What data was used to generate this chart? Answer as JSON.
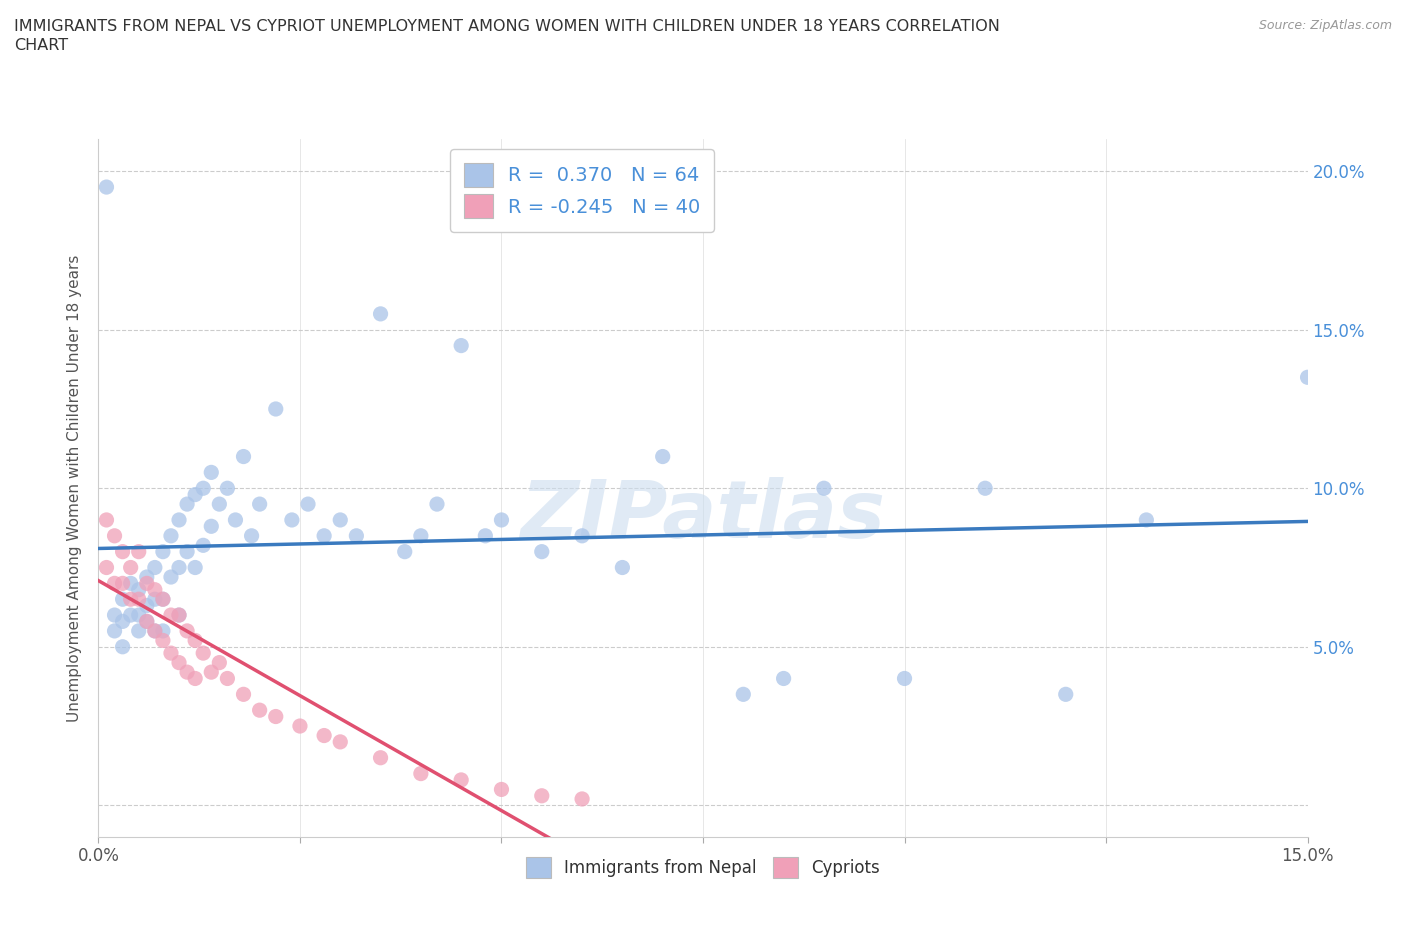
{
  "title": "IMMIGRANTS FROM NEPAL VS CYPRIOT UNEMPLOYMENT AMONG WOMEN WITH CHILDREN UNDER 18 YEARS CORRELATION\nCHART",
  "source": "Source: ZipAtlas.com",
  "ylabel": "Unemployment Among Women with Children Under 18 years",
  "xlim": [
    0.0,
    0.15
  ],
  "ylim": [
    -0.01,
    0.21
  ],
  "xtick_positions": [
    0.0,
    0.025,
    0.05,
    0.075,
    0.1,
    0.125,
    0.15
  ],
  "ytick_positions": [
    0.0,
    0.05,
    0.1,
    0.15,
    0.2
  ],
  "xtick_labels": [
    "0.0%",
    "",
    "",
    "",
    "",
    "",
    "15.0%"
  ],
  "ytick_labels": [
    "",
    "5.0%",
    "10.0%",
    "15.0%",
    "20.0%"
  ],
  "nepal_R": 0.37,
  "nepal_N": 64,
  "cypriot_R": -0.245,
  "cypriot_N": 40,
  "nepal_color": "#aac4e8",
  "cypriot_color": "#f0a0b8",
  "nepal_line_color": "#3a7abf",
  "cypriot_line_color": "#e05070",
  "cypriot_line_dashed_color": "#f0b0c0",
  "watermark": "ZIPatlas",
  "watermark_color": "#ccddef",
  "background_color": "#ffffff",
  "nepal_x": [
    0.001,
    0.002,
    0.002,
    0.003,
    0.003,
    0.003,
    0.004,
    0.004,
    0.005,
    0.005,
    0.005,
    0.006,
    0.006,
    0.006,
    0.007,
    0.007,
    0.007,
    0.008,
    0.008,
    0.008,
    0.009,
    0.009,
    0.01,
    0.01,
    0.01,
    0.011,
    0.011,
    0.012,
    0.012,
    0.013,
    0.013,
    0.014,
    0.014,
    0.015,
    0.016,
    0.017,
    0.018,
    0.019,
    0.02,
    0.022,
    0.024,
    0.026,
    0.028,
    0.03,
    0.032,
    0.035,
    0.038,
    0.04,
    0.042,
    0.045,
    0.048,
    0.05,
    0.055,
    0.06,
    0.065,
    0.07,
    0.08,
    0.085,
    0.09,
    0.1,
    0.11,
    0.12,
    0.13,
    0.15
  ],
  "nepal_y": [
    0.195,
    0.06,
    0.055,
    0.065,
    0.058,
    0.05,
    0.07,
    0.06,
    0.068,
    0.06,
    0.055,
    0.072,
    0.063,
    0.058,
    0.075,
    0.065,
    0.055,
    0.08,
    0.065,
    0.055,
    0.085,
    0.072,
    0.09,
    0.075,
    0.06,
    0.095,
    0.08,
    0.098,
    0.075,
    0.1,
    0.082,
    0.105,
    0.088,
    0.095,
    0.1,
    0.09,
    0.11,
    0.085,
    0.095,
    0.125,
    0.09,
    0.095,
    0.085,
    0.09,
    0.085,
    0.155,
    0.08,
    0.085,
    0.095,
    0.145,
    0.085,
    0.09,
    0.08,
    0.085,
    0.075,
    0.11,
    0.035,
    0.04,
    0.1,
    0.04,
    0.1,
    0.035,
    0.09,
    0.135
  ],
  "cypriot_x": [
    0.001,
    0.001,
    0.002,
    0.002,
    0.003,
    0.003,
    0.004,
    0.004,
    0.005,
    0.005,
    0.006,
    0.006,
    0.007,
    0.007,
    0.008,
    0.008,
    0.009,
    0.009,
    0.01,
    0.01,
    0.011,
    0.011,
    0.012,
    0.012,
    0.013,
    0.014,
    0.015,
    0.016,
    0.018,
    0.02,
    0.022,
    0.025,
    0.028,
    0.03,
    0.035,
    0.04,
    0.045,
    0.05,
    0.055,
    0.06
  ],
  "cypriot_y": [
    0.09,
    0.075,
    0.085,
    0.07,
    0.08,
    0.07,
    0.075,
    0.065,
    0.08,
    0.065,
    0.07,
    0.058,
    0.068,
    0.055,
    0.065,
    0.052,
    0.06,
    0.048,
    0.06,
    0.045,
    0.055,
    0.042,
    0.052,
    0.04,
    0.048,
    0.042,
    0.045,
    0.04,
    0.035,
    0.03,
    0.028,
    0.025,
    0.022,
    0.02,
    0.015,
    0.01,
    0.008,
    0.005,
    0.003,
    0.002
  ]
}
